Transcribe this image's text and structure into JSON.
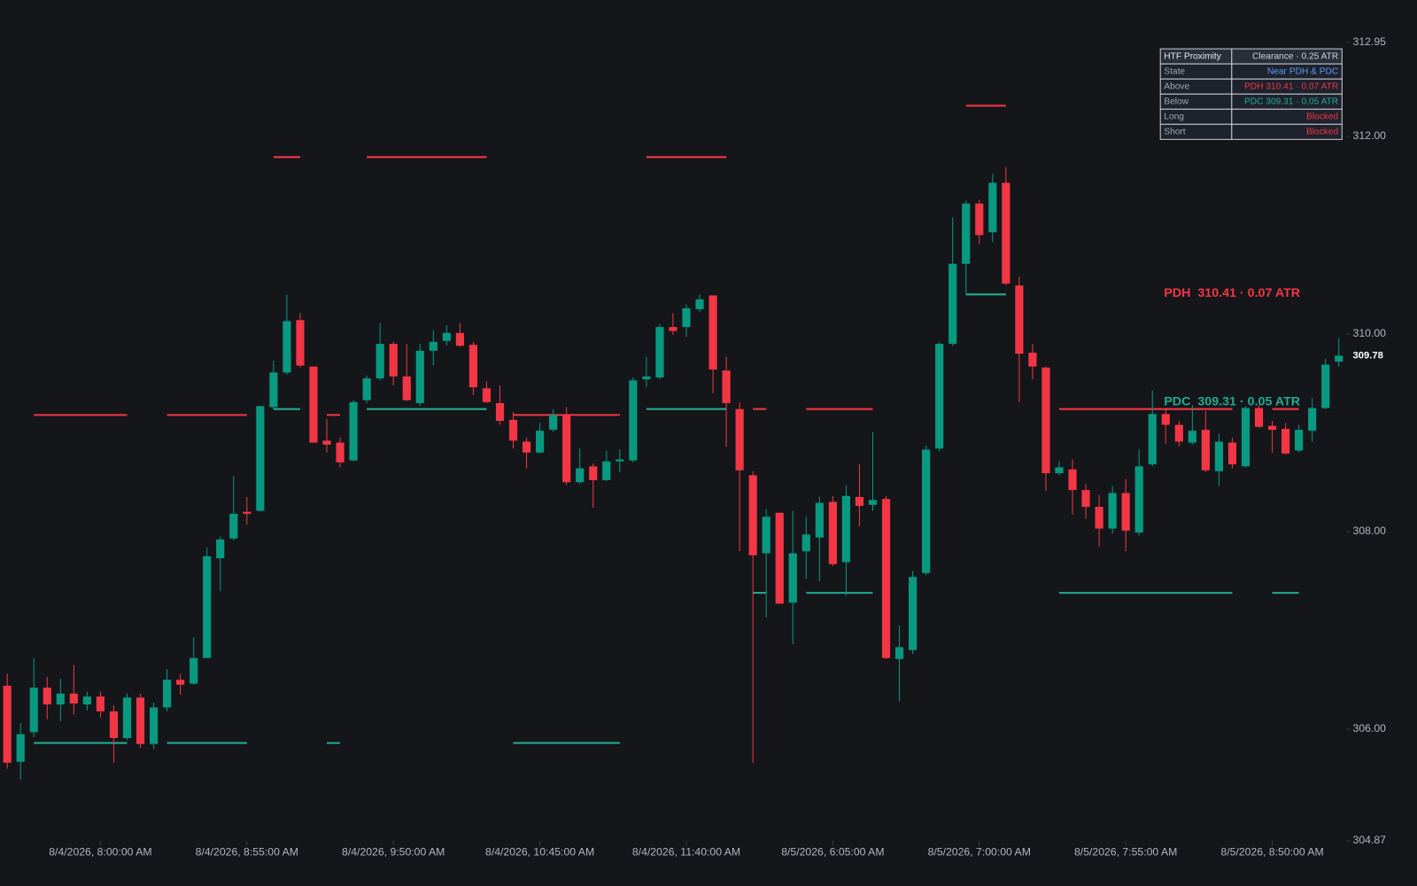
{
  "chart_data": {
    "type": "candlestick",
    "categories": [
      null,
      null,
      null,
      null,
      null,
      null,
      null,
      "8/4/2026, 8:00:00 AM",
      null,
      null,
      null,
      null,
      null,
      null,
      null,
      null,
      null,
      null,
      "8/4/2026, 8:55:00 AM",
      null,
      null,
      null,
      null,
      null,
      null,
      null,
      null,
      null,
      null,
      "8/4/2026, 9:50:00 AM",
      null,
      null,
      null,
      null,
      null,
      null,
      null,
      null,
      null,
      null,
      "8/4/2026, 10:45:00 AM",
      null,
      null,
      null,
      null,
      null,
      null,
      null,
      null,
      null,
      null,
      "8/4/2026, 11:40:00 AM",
      null,
      null,
      null,
      null,
      null,
      null,
      null,
      null,
      null,
      null,
      "8/5/2026, 6:05:00 AM",
      null,
      null,
      null,
      null,
      null,
      null,
      null,
      null,
      null,
      null,
      "8/5/2026, 7:00:00 AM",
      null,
      null,
      null,
      null,
      null,
      null,
      null,
      null,
      null,
      null,
      "8/5/2026, 7:55:00 AM",
      null,
      null,
      null,
      null,
      null,
      null,
      null,
      null,
      null,
      null,
      "8/5/2026, 8:50:00 AM",
      null,
      null,
      null,
      null,
      null
    ],
    "open": [
      306.44,
      305.67,
      305.97,
      306.42,
      306.25,
      306.36,
      306.25,
      306.33,
      306.18,
      305.91,
      306.32,
      305.85,
      306.22,
      306.5,
      306.46,
      306.72,
      307.73,
      307.93,
      308.2,
      308.21,
      309.26,
      309.61,
      310.14,
      309.67,
      308.92,
      308.9,
      308.72,
      309.33,
      309.55,
      309.9,
      309.57,
      309.3,
      309.83,
      309.93,
      310.01,
      309.89,
      309.45,
      309.3,
      309.13,
      308.91,
      308.8,
      309.03,
      309.18,
      308.5,
      308.66,
      308.52,
      308.71,
      308.72,
      309.54,
      309.56,
      310.07,
      310.07,
      310.25,
      310.39,
      309.63,
      309.24,
      308.57,
      307.78,
      308.19,
      307.28,
      307.8,
      307.94,
      308.3,
      307.69,
      308.35,
      308.27,
      308.33,
      306.71,
      306.8,
      307.58,
      308.84,
      309.9,
      310.71,
      311.32,
      311.03,
      311.53,
      310.49,
      309.81,
      309.66,
      308.59,
      308.63,
      308.42,
      308.25,
      308.03,
      308.39,
      307.99,
      308.68,
      309.19,
      309.08,
      308.9,
      309.03,
      308.61,
      308.9,
      308.66,
      309.25,
      309.07,
      309.04,
      308.82,
      309.02,
      309.25,
      309.72
    ],
    "high": [
      306.56,
      306.06,
      306.72,
      306.53,
      306.51,
      306.65,
      306.38,
      306.38,
      306.24,
      306.36,
      306.36,
      306.27,
      306.61,
      306.56,
      306.93,
      307.84,
      307.95,
      308.56,
      308.35,
      309.27,
      309.73,
      310.4,
      310.21,
      309.67,
      309.14,
      308.95,
      309.33,
      309.58,
      310.11,
      309.92,
      309.9,
      309.9,
      310.04,
      310.09,
      310.11,
      309.92,
      309.52,
      309.48,
      309.21,
      308.95,
      309.1,
      309.24,
      309.26,
      308.84,
      308.69,
      308.82,
      308.83,
      309.56,
      309.77,
      310.1,
      310.21,
      310.3,
      310.4,
      310.39,
      309.77,
      309.31,
      308.61,
      308.23,
      308.19,
      308.21,
      308.15,
      308.35,
      308.36,
      308.47,
      308.68,
      309.01,
      308.36,
      307.05,
      307.6,
      308.87,
      309.92,
      311.18,
      311.35,
      311.36,
      311.62,
      311.69,
      310.58,
      309.9,
      309.67,
      308.71,
      308.73,
      308.48,
      308.37,
      308.46,
      308.53,
      308.83,
      309.43,
      309.25,
      309.12,
      309.28,
      309.22,
      308.99,
      308.95,
      309.27,
      309.28,
      309.12,
      309.1,
      309.08,
      309.35,
      309.75,
      309.96
    ],
    "low": [
      305.6,
      305.49,
      305.92,
      306.1,
      306.08,
      306.15,
      306.19,
      306.12,
      305.66,
      305.89,
      305.81,
      305.8,
      306.18,
      306.35,
      306.45,
      306.72,
      307.4,
      307.91,
      308.07,
      308.2,
      309.24,
      309.59,
      309.66,
      308.9,
      308.8,
      308.65,
      308.71,
      309.3,
      309.53,
      309.48,
      309.32,
      309.27,
      309.68,
      309.88,
      309.87,
      309.38,
      309.3,
      309.08,
      308.84,
      308.64,
      308.79,
      309.01,
      308.47,
      308.48,
      308.24,
      308.51,
      308.6,
      308.7,
      309.46,
      309.54,
      309.99,
      309.97,
      310.22,
      309.4,
      308.86,
      307.8,
      305.66,
      307.13,
      307.27,
      306.86,
      307.52,
      307.5,
      307.65,
      307.35,
      308.05,
      308.21,
      306.71,
      306.28,
      306.76,
      307.56,
      308.81,
      309.88,
      310.4,
      310.91,
      310.93,
      310.49,
      309.31,
      309.54,
      308.41,
      308.57,
      308.17,
      308.13,
      307.85,
      307.98,
      307.8,
      307.96,
      308.66,
      308.89,
      308.86,
      308.88,
      308.6,
      308.46,
      308.64,
      308.65,
      309.05,
      308.8,
      308.78,
      308.8,
      308.91,
      309.24,
      309.67
    ],
    "close": [
      305.66,
      305.95,
      306.42,
      306.25,
      306.36,
      306.26,
      306.33,
      306.18,
      305.91,
      306.32,
      305.85,
      306.22,
      306.5,
      306.45,
      306.72,
      307.75,
      307.92,
      308.18,
      308.18,
      309.27,
      309.61,
      310.13,
      309.68,
      308.9,
      308.88,
      308.7,
      309.31,
      309.55,
      309.9,
      309.57,
      309.33,
      309.83,
      309.92,
      310.01,
      309.88,
      309.46,
      309.31,
      309.12,
      308.92,
      308.8,
      309.02,
      309.18,
      308.5,
      308.64,
      308.52,
      308.71,
      308.73,
      309.53,
      309.57,
      310.07,
      310.03,
      310.26,
      310.35,
      309.64,
      309.3,
      308.62,
      307.76,
      308.15,
      307.27,
      307.78,
      307.97,
      308.29,
      307.67,
      308.36,
      308.26,
      308.32,
      306.72,
      306.83,
      307.54,
      308.83,
      309.9,
      310.71,
      311.32,
      311.0,
      311.53,
      310.51,
      309.8,
      309.67,
      308.59,
      308.65,
      308.42,
      308.25,
      308.03,
      308.39,
      308.01,
      308.66,
      309.19,
      309.08,
      308.91,
      309.02,
      308.62,
      308.91,
      308.68,
      309.25,
      309.06,
      309.03,
      308.79,
      309.03,
      309.25,
      309.69,
      309.78
    ],
    "up_color": "#089981",
    "down_color": "#f23645",
    "ylim": [
      304.87,
      312.95
    ],
    "yticks": [
      304.87,
      {
        "value": 306,
        "label": "306.00"
      },
      {
        "value": 308,
        "label": "308.00"
      },
      {
        "value": 310,
        "label": "310.00"
      },
      {
        "value": 312,
        "label": "312.00"
      },
      312.95
    ],
    "grid": false,
    "last_price": 309.78,
    "levels": [
      {
        "value": 309.18,
        "start": 2,
        "end": 9,
        "color": "#f23645"
      },
      {
        "value": 309.18,
        "start": 12,
        "end": 18,
        "color": "#f23645"
      },
      {
        "value": 311.79,
        "start": 20,
        "end": 22,
        "color": "#f23645"
      },
      {
        "value": 309.18,
        "start": 24,
        "end": 25,
        "color": "#f23645"
      },
      {
        "value": 311.79,
        "start": 27,
        "end": 36,
        "color": "#f23645"
      },
      {
        "value": 309.18,
        "start": 38,
        "end": 46,
        "color": "#f23645"
      },
      {
        "value": 311.79,
        "start": 48,
        "end": 54,
        "color": "#f23645"
      },
      {
        "value": 309.24,
        "start": 56,
        "end": 57,
        "color": "#f23645"
      },
      {
        "value": 309.24,
        "start": 60,
        "end": 65,
        "color": "#f23645"
      },
      {
        "value": 312.31,
        "start": 72,
        "end": 75,
        "color": "#f23645"
      },
      {
        "value": 309.24,
        "start": 79,
        "end": 92,
        "color": "#f23645"
      },
      {
        "value": 309.24,
        "start": 95,
        "end": 97,
        "color": "#f23645"
      },
      {
        "value": 305.86,
        "start": 2,
        "end": 9,
        "color": "#22ab94"
      },
      {
        "value": 305.86,
        "start": 12,
        "end": 18,
        "color": "#22ab94"
      },
      {
        "value": 309.24,
        "start": 20,
        "end": 22,
        "color": "#22ab94"
      },
      {
        "value": 305.86,
        "start": 24,
        "end": 25,
        "color": "#22ab94"
      },
      {
        "value": 309.24,
        "start": 27,
        "end": 36,
        "color": "#22ab94"
      },
      {
        "value": 305.86,
        "start": 38,
        "end": 46,
        "color": "#22ab94"
      },
      {
        "value": 309.24,
        "start": 48,
        "end": 54,
        "color": "#22ab94"
      },
      {
        "value": 307.38,
        "start": 56,
        "end": 57,
        "color": "#22ab94"
      },
      {
        "value": 307.38,
        "start": 60,
        "end": 65,
        "color": "#22ab94"
      },
      {
        "value": 310.4,
        "start": 72,
        "end": 75,
        "color": "#22ab94"
      },
      {
        "value": 307.38,
        "start": 79,
        "end": 92,
        "color": "#22ab94"
      },
      {
        "value": 307.38,
        "start": 95,
        "end": 97,
        "color": "#22ab94"
      }
    ],
    "annotations": [
      {
        "text": "PDH  310.41 · 0.07 ATR",
        "value": 310.41,
        "color": "#f23645"
      },
      {
        "text": "PDC  309.31 · 0.05 ATR",
        "value": 309.31,
        "color": "#22ab94"
      }
    ],
    "table": {
      "rows": [
        [
          "HTF Proximity",
          "Clearance · 0.25 ATR"
        ],
        [
          "State",
          "Near PDH & PDC"
        ],
        [
          "Above",
          "PDH 310.41 · 0.07 ATR"
        ],
        [
          "Below",
          "PDC 309.31 · 0.05 ATR"
        ],
        [
          "Long",
          "Blocked"
        ],
        [
          "Short",
          "Blocked"
        ]
      ],
      "value_colors": [
        "#d1d4dc",
        "#5b9cf6",
        "#f23645",
        "#22ab94",
        "#f23645",
        "#f23645"
      ]
    }
  }
}
